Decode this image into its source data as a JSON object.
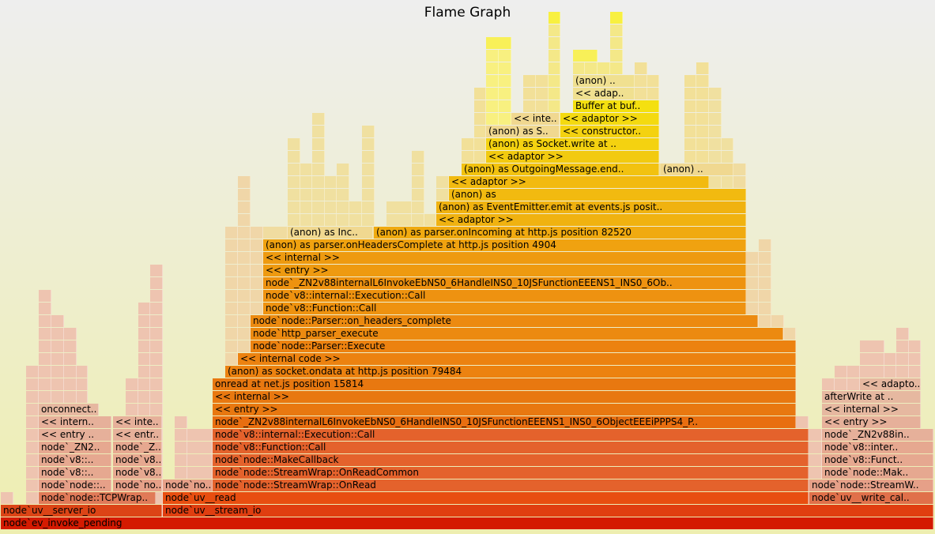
{
  "title": "Flame Graph",
  "chart_data": {
    "type": "flame",
    "title": "Flame Graph",
    "frames": [
      {
        "label": "node`ev_invoke_pending",
        "x0": 1,
        "x1": 1181,
        "row": 1,
        "color": "#d41a00"
      },
      {
        "label": "node`uv__server_io",
        "x0": 1,
        "x1": 205,
        "row": 2,
        "color": "#dc4416"
      },
      {
        "label": "node`uv__stream_io",
        "x0": 206,
        "x1": 1181,
        "row": 2,
        "color": "#e03e10"
      },
      {
        "label": "node`node::TCPWrap..",
        "x0": 49,
        "x1": 197,
        "row": 3,
        "color": "#e07a58"
      },
      {
        "label": "node`uv__read",
        "x0": 206,
        "x1": 1023,
        "row": 3,
        "color": "#e84e10"
      },
      {
        "label": "node`uv__write_cal..",
        "x0": 1024,
        "x1": 1181,
        "row": 3,
        "color": "#e0704a"
      },
      {
        "label": "node`node::..",
        "x0": 49,
        "x1": 141,
        "row": 4,
        "color": "#e6a088"
      },
      {
        "label": "node`no..",
        "x0": 143,
        "x1": 205,
        "row": 4,
        "color": "#e6a088"
      },
      {
        "label": "node`no..",
        "x0": 206,
        "x1": 269,
        "row": 4,
        "color": "#e6a088"
      },
      {
        "label": "node`node::StreamWrap::OnRead",
        "x0": 269,
        "x1": 1023,
        "row": 4,
        "color": "#e4622c"
      },
      {
        "label": "node`node::StreamW..",
        "x0": 1024,
        "x1": 1181,
        "row": 4,
        "color": "#e6a088"
      },
      {
        "label": "node`v8::..",
        "x0": 49,
        "x1": 141,
        "row": 5,
        "color": "#e6a890"
      },
      {
        "label": "node`v8..",
        "x0": 143,
        "x1": 205,
        "row": 5,
        "color": "#e6a890"
      },
      {
        "label": "node`node::StreamWrap::OnReadCommon",
        "x0": 269,
        "x1": 1023,
        "row": 5,
        "color": "#e4622c"
      },
      {
        "label": "node`node::Mak..",
        "x0": 1040,
        "x1": 1181,
        "row": 5,
        "color": "#e6a890"
      },
      {
        "label": "node`v8::..",
        "x0": 49,
        "x1": 141,
        "row": 6,
        "color": "#e6a890"
      },
      {
        "label": "node`v8..",
        "x0": 143,
        "x1": 205,
        "row": 6,
        "color": "#e6a890"
      },
      {
        "label": "node`node::MakeCallback",
        "x0": 269,
        "x1": 1023,
        "row": 6,
        "color": "#e4622c"
      },
      {
        "label": "node`v8::Funct..",
        "x0": 1040,
        "x1": 1181,
        "row": 6,
        "color": "#e6a890"
      },
      {
        "label": "node`_ZN2..",
        "x0": 49,
        "x1": 141,
        "row": 7,
        "color": "#e6a890"
      },
      {
        "label": "node`_Z..",
        "x0": 143,
        "x1": 205,
        "row": 7,
        "color": "#e6a890"
      },
      {
        "label": "node`v8::Function::Call",
        "x0": 269,
        "x1": 1023,
        "row": 7,
        "color": "#e4622c"
      },
      {
        "label": "node`v8::inter..",
        "x0": 1040,
        "x1": 1181,
        "row": 7,
        "color": "#e6a890"
      },
      {
        "label": "<< entry ..",
        "x0": 49,
        "x1": 141,
        "row": 8,
        "color": "#e6b09a"
      },
      {
        "label": "<< entr..",
        "x0": 143,
        "x1": 205,
        "row": 8,
        "color": "#e6b09a"
      },
      {
        "label": "node`v8::internal::Execution::Call",
        "x0": 269,
        "x1": 1023,
        "row": 8,
        "color": "#e4622c"
      },
      {
        "label": "node`_ZN2v88in..",
        "x0": 1040,
        "x1": 1181,
        "row": 8,
        "color": "#e6b09a"
      },
      {
        "label": "<< intern..",
        "x0": 49,
        "x1": 141,
        "row": 9,
        "color": "#e6b09a"
      },
      {
        "label": "<< inte..",
        "x0": 143,
        "x1": 205,
        "row": 9,
        "color": "#e6b09a"
      },
      {
        "label": "node`_ZN2v88internalL6InvokeEbNS0_6HandleINS0_10JSFunctionEEENS1_INS0_6ObjectEEEiPPPS4_P..",
        "x0": 269,
        "x1": 1007,
        "row": 9,
        "color": "#e86e10"
      },
      {
        "label": "<< entry >>",
        "x0": 1040,
        "x1": 1165,
        "row": 9,
        "color": "#e6b09a"
      },
      {
        "label": "onconnect..",
        "x0": 49,
        "x1": 125,
        "row": 10,
        "color": "#e6b8a0"
      },
      {
        "label": "<< entry >>",
        "x0": 269,
        "x1": 1007,
        "row": 10,
        "color": "#e87810"
      },
      {
        "label": "<< internal >>",
        "x0": 1040,
        "x1": 1165,
        "row": 10,
        "color": "#e6b8a0"
      },
      {
        "label": "<< internal >>",
        "x0": 269,
        "x1": 1007,
        "row": 11,
        "color": "#e87810"
      },
      {
        "label": "afterWrite at ..",
        "x0": 1040,
        "x1": 1165,
        "row": 11,
        "color": "#e6b8a0"
      },
      {
        "label": "onread at net.js position 15814",
        "x0": 269,
        "x1": 1007,
        "row": 12,
        "color": "#e87810"
      },
      {
        "label": "<< adapto..",
        "x0": 1088,
        "x1": 1165,
        "row": 12,
        "color": "#e6b8a0"
      },
      {
        "label": "(anon) as socket.ondata at http.js position 79484",
        "x0": 285,
        "x1": 1007,
        "row": 13,
        "color": "#ec8210"
      },
      {
        "label": "<< internal code >>",
        "x0": 301,
        "x1": 1007,
        "row": 14,
        "color": "#ec8210"
      },
      {
        "label": "node`node::Parser::Execute",
        "x0": 317,
        "x1": 1007,
        "row": 15,
        "color": "#ec8210"
      },
      {
        "label": "node`http_parser_execute",
        "x0": 317,
        "x1": 991,
        "row": 16,
        "color": "#ec8a10"
      },
      {
        "label": "node`node::Parser::on_headers_complete",
        "x0": 317,
        "x1": 959,
        "row": 17,
        "color": "#ec8a10"
      },
      {
        "label": "node`v8::Function::Call",
        "x0": 333,
        "x1": 944,
        "row": 18,
        "color": "#ee9210"
      },
      {
        "label": "node`v8::internal::Execution::Call",
        "x0": 333,
        "x1": 944,
        "row": 19,
        "color": "#ee9210"
      },
      {
        "label": "node`_ZN2v88internalL6InvokeEbNS0_6HandleINS0_10JSFunctionEEENS1_INS0_6Ob..",
        "x0": 333,
        "x1": 944,
        "row": 20,
        "color": "#ee9210"
      },
      {
        "label": "<< entry >>",
        "x0": 333,
        "x1": 944,
        "row": 21,
        "color": "#ee9a10"
      },
      {
        "label": "<< internal >>",
        "x0": 333,
        "x1": 944,
        "row": 22,
        "color": "#ee9a10"
      },
      {
        "label": "(anon) as parser.onHeadersComplete at http.js position 4904",
        "x0": 333,
        "x1": 944,
        "row": 23,
        "color": "#f0a210"
      },
      {
        "label": "(anon) as Inc..",
        "x0": 364,
        "x1": 472,
        "row": 24,
        "color": "#f0d890"
      },
      {
        "label": "(anon) as parser.onIncoming at http.js position 82520",
        "x0": 473,
        "x1": 944,
        "row": 24,
        "color": "#f0aa10"
      },
      {
        "label": "<< adaptor >>",
        "x0": 552,
        "x1": 944,
        "row": 25,
        "color": "#f0b210"
      },
      {
        "label": "(anon) as EventEmitter.emit at events.js posit..",
        "x0": 552,
        "x1": 944,
        "row": 26,
        "color": "#f0b210"
      },
      {
        "label": "(anon) as",
        "x0": 568,
        "x1": 944,
        "row": 27,
        "color": "#f2ba10"
      },
      {
        "label": "<< adaptor >>",
        "x0": 568,
        "x1": 897,
        "row": 28,
        "color": "#f2ba10"
      },
      {
        "label": "(anon) as OutgoingMessage.end..",
        "x0": 584,
        "x1": 834,
        "row": 29,
        "color": "#f2c210"
      },
      {
        "label": "(anon) ..",
        "x0": 836,
        "x1": 928,
        "row": 29,
        "color": "#f0d890"
      },
      {
        "label": "<< adaptor >>",
        "x0": 615,
        "x1": 834,
        "row": 30,
        "color": "#f2ca10"
      },
      {
        "label": "(anon) as Socket.write at ..",
        "x0": 615,
        "x1": 834,
        "row": 31,
        "color": "#f4d210"
      },
      {
        "label": "(anon) as S..",
        "x0": 615,
        "x1": 708,
        "row": 32,
        "color": "#f0d890"
      },
      {
        "label": "<< constructor..",
        "x0": 709,
        "x1": 834,
        "row": 32,
        "color": "#f4d210"
      },
      {
        "label": "<< inte..",
        "x0": 647,
        "x1": 708,
        "row": 33,
        "color": "#f0d890"
      },
      {
        "label": "<< adaptor >>",
        "x0": 709,
        "x1": 834,
        "row": 33,
        "color": "#f4da10"
      },
      {
        "label": "Buffer at buf..",
        "x0": 725,
        "x1": 834,
        "row": 34,
        "color": "#f4e010"
      },
      {
        "label": "<< adap..",
        "x0": 725,
        "x1": 803,
        "row": 35,
        "color": "#f0e090"
      },
      {
        "label": "(anon) ..",
        "x0": 725,
        "x1": 803,
        "row": 36,
        "color": "#f0e090"
      }
    ],
    "blocks": [
      {
        "x0": 1,
        "x1": 17,
        "top": 3,
        "color": "#eec4b0"
      },
      {
        "x0": 17,
        "x1": 33,
        "top": 2,
        "color": "#eec4b0"
      },
      {
        "x0": 33,
        "x1": 49,
        "top": 13,
        "color": "#eec4b0"
      },
      {
        "x0": 49,
        "x1": 65,
        "top": 19,
        "color": "#eec4b0"
      },
      {
        "x0": 65,
        "x1": 81,
        "top": 17,
        "color": "#eec4b0"
      },
      {
        "x0": 81,
        "x1": 97,
        "top": 16,
        "color": "#eec4b0"
      },
      {
        "x0": 97,
        "x1": 111,
        "top": 13,
        "color": "#eec4b0"
      },
      {
        "x0": 111,
        "x1": 125,
        "top": 10,
        "color": "#eec4b0"
      },
      {
        "x0": 159,
        "x1": 175,
        "top": 12,
        "color": "#eec4b0"
      },
      {
        "x0": 175,
        "x1": 190,
        "top": 18,
        "color": "#eec4b0"
      },
      {
        "x0": 190,
        "x1": 206,
        "top": 21,
        "color": "#eec4b0"
      },
      {
        "x0": 221,
        "x1": 237,
        "top": 9,
        "color": "#eec4b0"
      },
      {
        "x0": 237,
        "x1": 269,
        "top": 8,
        "color": "#eec4b0"
      },
      {
        "x0": 285,
        "x1": 301,
        "top": 24,
        "color": "#f0d6a8"
      },
      {
        "x0": 301,
        "x1": 317,
        "top": 28,
        "color": "#f0d6a8"
      },
      {
        "x0": 317,
        "x1": 333,
        "top": 24,
        "color": "#f0d6a8"
      },
      {
        "x0": 333,
        "x1": 364,
        "top": 24,
        "color": "#f0dca0"
      },
      {
        "x0": 364,
        "x1": 380,
        "top": 31,
        "color": "#f0e0a0"
      },
      {
        "x0": 380,
        "x1": 395,
        "top": 29,
        "color": "#f0e0a0"
      },
      {
        "x0": 395,
        "x1": 411,
        "top": 33,
        "color": "#f0e0a0"
      },
      {
        "x0": 411,
        "x1": 426,
        "top": 28,
        "color": "#f0e0a0"
      },
      {
        "x0": 426,
        "x1": 442,
        "top": 29,
        "color": "#f0e0a0"
      },
      {
        "x0": 442,
        "x1": 458,
        "top": 26,
        "color": "#f0e0a0"
      },
      {
        "x0": 458,
        "x1": 474,
        "top": 32,
        "color": "#f0e0a0"
      },
      {
        "x0": 489,
        "x1": 521,
        "top": 26,
        "color": "#f0e0a0"
      },
      {
        "x0": 521,
        "x1": 537,
        "top": 30,
        "color": "#f0e0a0"
      },
      {
        "x0": 537,
        "x1": 552,
        "top": 25,
        "color": "#f0e0a0"
      },
      {
        "x0": 552,
        "x1": 568,
        "top": 28,
        "color": "#f0e0a0"
      },
      {
        "x0": 584,
        "x1": 600,
        "top": 31,
        "color": "#f2e098"
      },
      {
        "x0": 600,
        "x1": 615,
        "top": 35,
        "color": "#f2e098"
      },
      {
        "x0": 615,
        "x1": 631,
        "top": 39,
        "color": "#f8f080"
      },
      {
        "x0": 631,
        "x1": 647,
        "top": 39,
        "color": "#f8f080"
      },
      {
        "x0": 662,
        "x1": 678,
        "top": 36,
        "color": "#f2e098"
      },
      {
        "x0": 678,
        "x1": 694,
        "top": 36,
        "color": "#f2e098"
      },
      {
        "x0": 694,
        "x1": 709,
        "top": 40,
        "color": "#f4e888"
      },
      {
        "x0": 725,
        "x1": 740,
        "top": 38,
        "color": "#f4e888"
      },
      {
        "x0": 740,
        "x1": 756,
        "top": 38,
        "color": "#f4e888"
      },
      {
        "x0": 756,
        "x1": 772,
        "top": 37,
        "color": "#f4e888"
      },
      {
        "x0": 772,
        "x1": 788,
        "top": 40,
        "color": "#f4e888"
      },
      {
        "x0": 788,
        "x1": 803,
        "top": 35,
        "color": "#f2e098"
      },
      {
        "x0": 803,
        "x1": 819,
        "top": 37,
        "color": "#f2e098"
      },
      {
        "x0": 819,
        "x1": 834,
        "top": 36,
        "color": "#f2e098"
      },
      {
        "x0": 834,
        "x1": 866,
        "top": 29,
        "color": "#f0e0a0"
      },
      {
        "x0": 866,
        "x1": 881,
        "top": 36,
        "color": "#f2e098"
      },
      {
        "x0": 881,
        "x1": 897,
        "top": 37,
        "color": "#f2e098"
      },
      {
        "x0": 897,
        "x1": 913,
        "top": 35,
        "color": "#f0e0a0"
      },
      {
        "x0": 913,
        "x1": 928,
        "top": 31,
        "color": "#f0e0a0"
      },
      {
        "x0": 928,
        "x1": 944,
        "top": 29,
        "color": "#f0dca0"
      },
      {
        "x0": 944,
        "x1": 960,
        "top": 22,
        "color": "#f0d6a8"
      },
      {
        "x0": 960,
        "x1": 976,
        "top": 23,
        "color": "#f0d6a8"
      },
      {
        "x0": 976,
        "x1": 992,
        "top": 17,
        "color": "#f0d6a8"
      },
      {
        "x0": 992,
        "x1": 1007,
        "top": 16,
        "color": "#f0d6a8"
      },
      {
        "x0": 1007,
        "x1": 1023,
        "top": 9,
        "color": "#eec4b0"
      },
      {
        "x0": 1023,
        "x1": 1040,
        "top": 8,
        "color": "#eec4b0"
      },
      {
        "x0": 1040,
        "x1": 1056,
        "top": 12,
        "color": "#eec4b0"
      },
      {
        "x0": 1056,
        "x1": 1072,
        "top": 13,
        "color": "#eec4b0"
      },
      {
        "x0": 1072,
        "x1": 1088,
        "top": 13,
        "color": "#eec4b0"
      },
      {
        "x0": 1088,
        "x1": 1119,
        "top": 15,
        "color": "#eec4b0"
      },
      {
        "x0": 1119,
        "x1": 1134,
        "top": 14,
        "color": "#eec4b0"
      },
      {
        "x0": 1134,
        "x1": 1150,
        "top": 16,
        "color": "#eec4b0"
      },
      {
        "x0": 1150,
        "x1": 1165,
        "top": 15,
        "color": "#eec4b0"
      }
    ],
    "highlights": [
      {
        "x0": 694,
        "x1": 709,
        "row": 41,
        "color": "#f8f040"
      },
      {
        "x0": 772,
        "x1": 788,
        "row": 41,
        "color": "#f8f040"
      },
      {
        "x0": 615,
        "x1": 647,
        "row": 39,
        "color": "#f8f058"
      },
      {
        "x0": 725,
        "x1": 756,
        "row": 38,
        "color": "#f8f058"
      }
    ]
  }
}
